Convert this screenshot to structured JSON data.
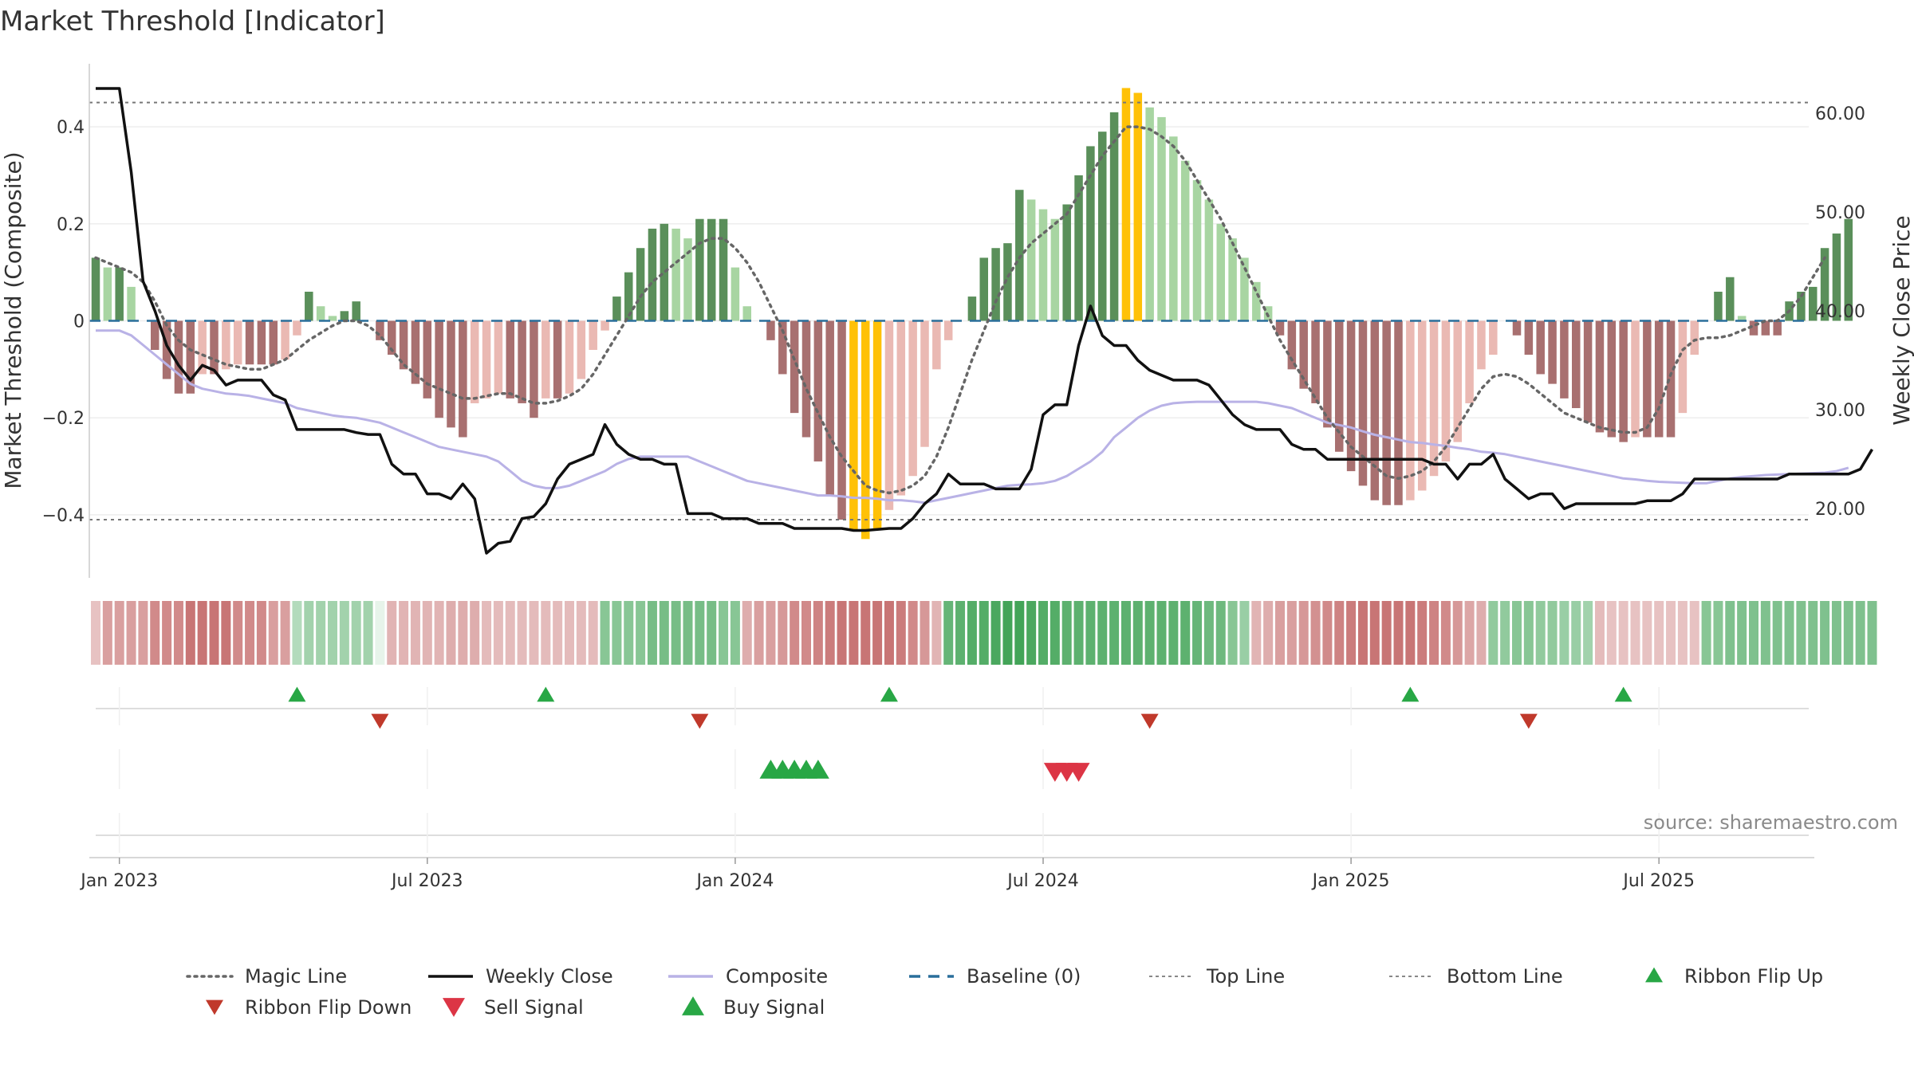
{
  "title": "Market Threshold [Indicator]",
  "source": "source: sharemaestro.com",
  "colors": {
    "hist_dark_green": "#5a8f5a",
    "hist_light_green": "#a8d5a2",
    "hist_dark_red": "#a87070",
    "hist_light_red": "#eab9b3",
    "hist_extreme": "#ffc107",
    "weekly_close": "#111111",
    "composite": "#b9b2e6",
    "magic_line": "#666666",
    "baseline": "#2a6f9b",
    "threshold_lines": "#777777",
    "ribbon_up": "#28a745",
    "ribbon_down": "#c0392b",
    "buy": "#28a745",
    "sell": "#dc3545"
  },
  "chart_data": {
    "type": "bar",
    "x_axis": {
      "tick_labels": [
        "Jan 2023",
        "Jul 2023",
        "Jan 2024",
        "Jul 2024",
        "Jan 2025",
        "Jul 2025"
      ],
      "tick_weeks": [
        2,
        28,
        54,
        80,
        106,
        132
      ],
      "n_weeks": 145
    },
    "y_left": {
      "label": "Market Threshold (Composite)",
      "range": [
        -0.53,
        0.53
      ],
      "ticks": [
        0.4,
        0.2,
        0,
        -0.2,
        -0.4
      ],
      "tick_labels": [
        "0.4",
        "0.2",
        "0",
        "−0.2",
        "−0.4"
      ]
    },
    "y_right": {
      "label": "Weekly Close Price",
      "range": [
        13.0,
        65.0
      ],
      "ticks": [
        60,
        50,
        40,
        30,
        20
      ],
      "tick_labels": [
        "60.00",
        "50.00",
        "40.00",
        "30.00",
        "20.00"
      ]
    },
    "top_line": 0.45,
    "bottom_line": -0.41,
    "baseline": 0,
    "histogram": [
      0.13,
      0.11,
      0.11,
      0.07,
      0.0,
      -0.06,
      -0.12,
      -0.15,
      -0.15,
      -0.11,
      -0.11,
      -0.1,
      -0.09,
      -0.09,
      -0.09,
      -0.09,
      -0.08,
      -0.03,
      0.06,
      0.03,
      0.01,
      0.02,
      0.04,
      0.0,
      -0.04,
      -0.07,
      -0.1,
      -0.13,
      -0.16,
      -0.2,
      -0.22,
      -0.24,
      -0.17,
      -0.16,
      -0.15,
      -0.16,
      -0.17,
      -0.2,
      -0.16,
      -0.16,
      -0.15,
      -0.12,
      -0.06,
      -0.02,
      0.05,
      0.1,
      0.15,
      0.19,
      0.2,
      0.19,
      0.17,
      0.21,
      0.21,
      0.21,
      0.11,
      0.03,
      0.0,
      -0.04,
      -0.11,
      -0.19,
      -0.24,
      -0.29,
      -0.36,
      -0.41,
      -0.43,
      -0.45,
      -0.43,
      -0.39,
      -0.36,
      -0.32,
      -0.26,
      -0.1,
      -0.04,
      0.0,
      0.05,
      0.13,
      0.15,
      0.16,
      0.27,
      0.25,
      0.23,
      0.21,
      0.24,
      0.3,
      0.36,
      0.39,
      0.43,
      0.48,
      0.47,
      0.44,
      0.42,
      0.38,
      0.33,
      0.29,
      0.25,
      0.2,
      0.17,
      0.13,
      0.08,
      0.03,
      -0.03,
      -0.1,
      -0.14,
      -0.17,
      -0.22,
      -0.27,
      -0.31,
      -0.34,
      -0.37,
      -0.38,
      -0.38,
      -0.37,
      -0.35,
      -0.32,
      -0.29,
      -0.25,
      -0.17,
      -0.1,
      -0.07,
      0.0,
      -0.03,
      -0.07,
      -0.11,
      -0.13,
      -0.16,
      -0.18,
      -0.21,
      -0.23,
      -0.24,
      -0.25,
      -0.24,
      -0.24,
      -0.24,
      -0.24,
      -0.19,
      -0.07,
      0.0,
      0.06,
      0.09,
      0.01,
      -0.03,
      -0.03,
      -0.03,
      0.04,
      0.06,
      0.07,
      0.15,
      0.18,
      0.21
    ],
    "series": [
      {
        "name": "Magic Line",
        "axis": "left",
        "values": [
          0.13,
          0.12,
          0.11,
          0.1,
          0.08,
          0.04,
          -0.01,
          -0.04,
          -0.06,
          -0.07,
          -0.08,
          -0.09,
          -0.095,
          -0.1,
          -0.1,
          -0.09,
          -0.08,
          -0.06,
          -0.04,
          -0.025,
          -0.01,
          0.0,
          0.0,
          -0.01,
          -0.03,
          -0.06,
          -0.09,
          -0.11,
          -0.13,
          -0.14,
          -0.15,
          -0.16,
          -0.16,
          -0.155,
          -0.15,
          -0.15,
          -0.16,
          -0.17,
          -0.17,
          -0.165,
          -0.155,
          -0.14,
          -0.11,
          -0.07,
          -0.03,
          0.01,
          0.05,
          0.08,
          0.1,
          0.12,
          0.14,
          0.16,
          0.17,
          0.17,
          0.15,
          0.12,
          0.08,
          0.03,
          -0.02,
          -0.08,
          -0.14,
          -0.19,
          -0.24,
          -0.28,
          -0.31,
          -0.34,
          -0.35,
          -0.355,
          -0.35,
          -0.34,
          -0.32,
          -0.28,
          -0.22,
          -0.15,
          -0.08,
          -0.02,
          0.04,
          0.09,
          0.13,
          0.16,
          0.18,
          0.2,
          0.22,
          0.26,
          0.3,
          0.34,
          0.37,
          0.4,
          0.4,
          0.395,
          0.38,
          0.36,
          0.33,
          0.29,
          0.25,
          0.21,
          0.16,
          0.11,
          0.06,
          0.01,
          -0.04,
          -0.08,
          -0.12,
          -0.16,
          -0.2,
          -0.23,
          -0.26,
          -0.28,
          -0.3,
          -0.32,
          -0.325,
          -0.32,
          -0.31,
          -0.29,
          -0.26,
          -0.22,
          -0.18,
          -0.14,
          -0.115,
          -0.11,
          -0.115,
          -0.13,
          -0.15,
          -0.17,
          -0.19,
          -0.2,
          -0.21,
          -0.22,
          -0.225,
          -0.23,
          -0.23,
          -0.22,
          -0.18,
          -0.11,
          -0.06,
          -0.04,
          -0.035,
          -0.035,
          -0.03,
          -0.02,
          -0.01,
          0.0,
          0.0,
          0.02,
          0.05,
          0.09,
          0.13
        ]
      },
      {
        "name": "Weekly Close",
        "axis": "right",
        "values": [
          62.5,
          62.5,
          62.5,
          54.0,
          43.0,
          40.0,
          36.5,
          34.5,
          33.0,
          34.5,
          34.0,
          32.5,
          33.0,
          33.0,
          33.0,
          31.5,
          31.0,
          28.0,
          28.0,
          28.0,
          28.0,
          28.0,
          27.7,
          27.5,
          27.5,
          24.5,
          23.5,
          23.5,
          21.5,
          21.5,
          21.0,
          22.5,
          21.0,
          15.5,
          16.5,
          16.7,
          19.0,
          19.2,
          20.5,
          23.0,
          24.5,
          25.0,
          25.5,
          28.5,
          26.5,
          25.5,
          25.0,
          25.0,
          24.5,
          24.5,
          19.5,
          19.5,
          19.5,
          19.0,
          19.0,
          19.0,
          18.5,
          18.5,
          18.5,
          18.0,
          18.0,
          18.0,
          18.0,
          18.0,
          17.8,
          17.8,
          17.9,
          18.0,
          18.0,
          19.0,
          20.5,
          21.5,
          23.5,
          22.5,
          22.5,
          22.5,
          22.0,
          22.0,
          22.0,
          24.0,
          29.5,
          30.5,
          30.5,
          36.5,
          40.5,
          37.5,
          36.5,
          36.5,
          35.0,
          34.0,
          33.5,
          33.0,
          33.0,
          33.0,
          32.5,
          31.0,
          29.5,
          28.5,
          28.0,
          28.0,
          28.0,
          26.5,
          26.0,
          26.0,
          25.0,
          25.0,
          25.0,
          25.0,
          25.0,
          25.0,
          25.0,
          25.0,
          25.0,
          24.5,
          24.5,
          23.0,
          24.5,
          24.5,
          25.5,
          23.0,
          22.0,
          21.0,
          21.5,
          21.5,
          20.0,
          20.5,
          20.5,
          20.5,
          20.5,
          20.5,
          20.5,
          20.8,
          20.8,
          20.8,
          21.5,
          23.0,
          23.0,
          23.0,
          23.0,
          23.0,
          23.0,
          23.0,
          23.0,
          23.5,
          23.5,
          23.5,
          23.5,
          23.5,
          23.5,
          24.0,
          26.0
        ]
      },
      {
        "name": "Composite",
        "axis": "left",
        "values": [
          -0.02,
          -0.02,
          -0.02,
          -0.03,
          -0.05,
          -0.07,
          -0.09,
          -0.11,
          -0.13,
          -0.14,
          -0.145,
          -0.15,
          -0.152,
          -0.155,
          -0.16,
          -0.165,
          -0.17,
          -0.18,
          -0.185,
          -0.19,
          -0.195,
          -0.198,
          -0.2,
          -0.205,
          -0.21,
          -0.22,
          -0.23,
          -0.24,
          -0.25,
          -0.26,
          -0.265,
          -0.27,
          -0.275,
          -0.28,
          -0.29,
          -0.31,
          -0.33,
          -0.34,
          -0.345,
          -0.345,
          -0.34,
          -0.33,
          -0.32,
          -0.31,
          -0.295,
          -0.285,
          -0.28,
          -0.28,
          -0.28,
          -0.28,
          -0.28,
          -0.29,
          -0.3,
          -0.31,
          -0.32,
          -0.33,
          -0.335,
          -0.34,
          -0.345,
          -0.35,
          -0.355,
          -0.36,
          -0.36,
          -0.362,
          -0.365,
          -0.365,
          -0.367,
          -0.37,
          -0.37,
          -0.372,
          -0.375,
          -0.37,
          -0.365,
          -0.36,
          -0.355,
          -0.35,
          -0.345,
          -0.34,
          -0.338,
          -0.337,
          -0.335,
          -0.33,
          -0.32,
          -0.305,
          -0.29,
          -0.27,
          -0.24,
          -0.22,
          -0.2,
          -0.185,
          -0.175,
          -0.17,
          -0.168,
          -0.167,
          -0.167,
          -0.167,
          -0.167,
          -0.167,
          -0.167,
          -0.17,
          -0.175,
          -0.18,
          -0.19,
          -0.2,
          -0.21,
          -0.215,
          -0.22,
          -0.228,
          -0.235,
          -0.24,
          -0.245,
          -0.25,
          -0.252,
          -0.255,
          -0.258,
          -0.262,
          -0.265,
          -0.27,
          -0.272,
          -0.275,
          -0.28,
          -0.285,
          -0.29,
          -0.295,
          -0.3,
          -0.305,
          -0.31,
          -0.315,
          -0.32,
          -0.325,
          -0.327,
          -0.33,
          -0.332,
          -0.333,
          -0.334,
          -0.335,
          -0.335,
          -0.33,
          -0.325,
          -0.322,
          -0.32,
          -0.318,
          -0.317,
          -0.316,
          -0.315,
          -0.314,
          -0.313,
          -0.31,
          -0.303
        ]
      }
    ],
    "ribbon": {
      "row1": [
        -0.3,
        -0.55,
        -0.55,
        -0.55,
        -0.55,
        -0.7,
        -0.7,
        -0.7,
        -0.85,
        -0.85,
        -0.85,
        -0.85,
        -0.7,
        -0.7,
        -0.7,
        -0.55,
        -0.55,
        0.3,
        0.4,
        0.4,
        0.4,
        0.4,
        0.4,
        0.4,
        0.0,
        -0.4,
        -0.4,
        -0.4,
        -0.4,
        -0.4,
        -0.45,
        -0.45,
        -0.45,
        -0.35,
        -0.35,
        -0.35,
        -0.35,
        -0.35,
        -0.35,
        -0.35,
        -0.35,
        -0.35,
        -0.35,
        0.55,
        0.55,
        0.55,
        0.55,
        0.65,
        0.65,
        0.65,
        0.65,
        0.65,
        0.65,
        0.55,
        0.55,
        -0.45,
        -0.55,
        -0.55,
        -0.6,
        -0.7,
        -0.7,
        -0.75,
        -0.8,
        -0.85,
        -0.85,
        -0.85,
        -0.85,
        -0.85,
        -0.8,
        -0.7,
        -0.6,
        -0.4,
        0.75,
        0.8,
        0.85,
        0.85,
        0.9,
        0.95,
        0.95,
        0.9,
        0.85,
        0.85,
        0.8,
        0.8,
        0.8,
        0.8,
        0.8,
        0.8,
        0.8,
        0.8,
        0.8,
        0.8,
        0.8,
        0.75,
        0.7,
        0.7,
        0.55,
        0.45,
        -0.4,
        -0.45,
        -0.55,
        -0.55,
        -0.6,
        -0.65,
        -0.7,
        -0.75,
        -0.8,
        -0.85,
        -0.85,
        -0.85,
        -0.85,
        -0.85,
        -0.8,
        -0.75,
        -0.7,
        -0.6,
        -0.5,
        -0.45,
        0.5,
        0.5,
        0.55,
        0.55,
        0.5,
        0.5,
        0.45,
        0.45,
        0.4,
        -0.35,
        -0.3,
        -0.3,
        -0.3,
        -0.3,
        -0.3,
        -0.3,
        -0.3,
        -0.3,
        0.55,
        0.55,
        0.6,
        0.6,
        0.6,
        0.6,
        0.6,
        0.6,
        0.6,
        0.6,
        0.6,
        0.6,
        0.6,
        0.6,
        0.6
      ]
    },
    "ribbon_flip_up_weeks": [
      17,
      38,
      67,
      111,
      129
    ],
    "ribbon_flip_down_weeks": [
      24,
      51,
      89,
      121
    ],
    "buy_signal_weeks": [
      57,
      58,
      59,
      60,
      61
    ],
    "sell_signal_weeks": [
      81,
      82,
      83
    ],
    "legend": [
      {
        "label": "Magic Line",
        "kind": "line-dotted",
        "color": "#666666"
      },
      {
        "label": "Weekly Close",
        "kind": "line",
        "color": "#111111"
      },
      {
        "label": "Composite",
        "kind": "line",
        "color": "#b9b2e6"
      },
      {
        "label": "Baseline (0)",
        "kind": "line-dashed",
        "color": "#2a6f9b"
      },
      {
        "label": "Top Line",
        "kind": "line-dotted-thin",
        "color": "#888888"
      },
      {
        "label": "Bottom Line",
        "kind": "line-dotted-thin",
        "color": "#888888"
      },
      {
        "label": "Ribbon Flip Up",
        "kind": "tri-up",
        "color": "#28a745"
      },
      {
        "label": "Ribbon Flip Down",
        "kind": "tri-down",
        "color": "#c0392b"
      },
      {
        "label": "Sell Signal",
        "kind": "tri-down",
        "color": "#dc3545"
      },
      {
        "label": "Buy Signal",
        "kind": "tri-up",
        "color": "#28a745"
      }
    ]
  }
}
